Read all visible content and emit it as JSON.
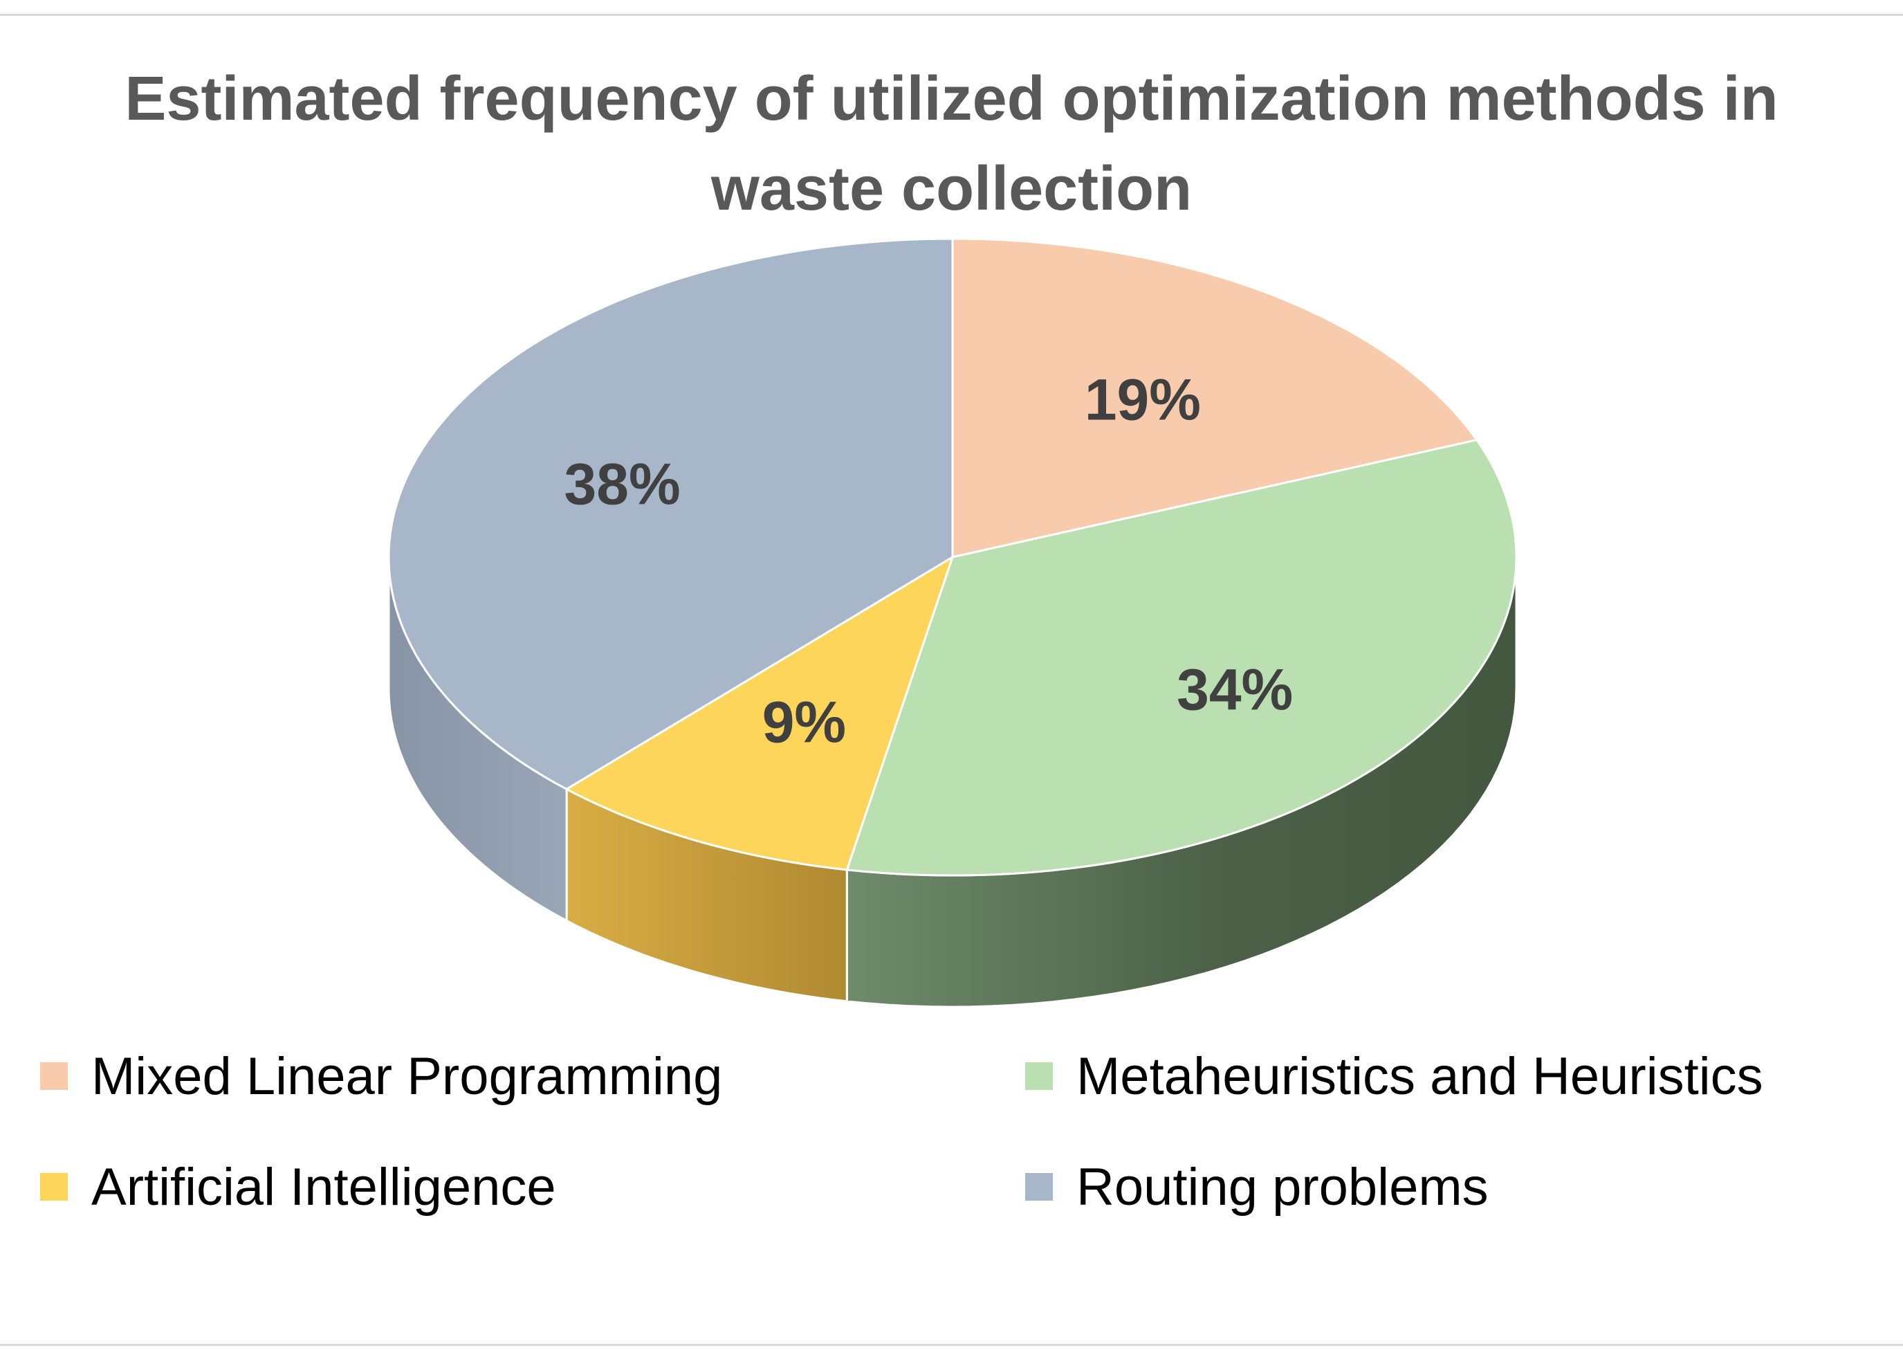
{
  "chart_data": {
    "type": "pie",
    "style": "3d-exploded-none",
    "title": "Estimated frequency of utilized optimization methods in waste collection",
    "unit": "%",
    "legend_position": "bottom",
    "slices": [
      {
        "name": "Mixed Linear Programming",
        "value": 19,
        "label": "19%",
        "color": "#F8CBAD",
        "side_color": "#C79C80"
      },
      {
        "name": "Metaheuristics and Heuristics",
        "value": 34,
        "label": "34%",
        "color": "#BADFB0",
        "side_color": "#4A5E48"
      },
      {
        "name": "Artificial Intelligence",
        "value": 9,
        "label": "9%",
        "color": "#FDD55B",
        "side_color": "#C8A040"
      },
      {
        "name": "Routing problems",
        "value": 38,
        "label": "38%",
        "color": "#A7B6C9",
        "side_color": "#8A98AA"
      }
    ]
  }
}
